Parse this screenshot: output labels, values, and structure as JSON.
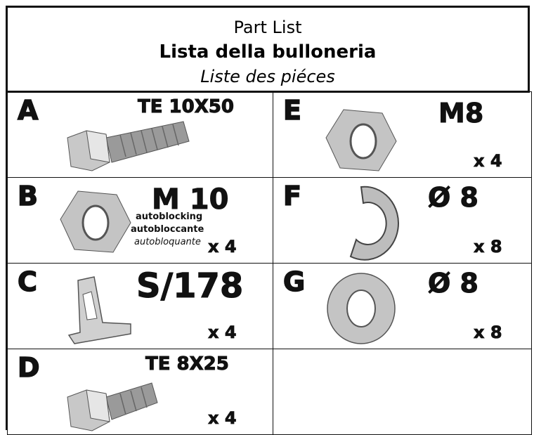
{
  "header": {
    "title": "Part List",
    "title_it": "Lista della bulloneria",
    "title_fr": "Liste des piéces"
  },
  "cells": [
    {
      "letter": "A",
      "spec": "TE 10X50"
    },
    {
      "letter": "E",
      "spec": "M8",
      "qty": "x 4"
    },
    {
      "letter": "B",
      "spec": "M 10",
      "notes": [
        "autoblocking",
        "autobloccante",
        "autobloquante"
      ],
      "qty": "x 4"
    },
    {
      "letter": "F",
      "spec": "Ø 8",
      "qty": "x 8"
    },
    {
      "letter": "C",
      "spec": "S/178",
      "qty": "x 4"
    },
    {
      "letter": "G",
      "spec": "Ø 8",
      "qty": "x 8"
    },
    {
      "letter": "D",
      "spec": "TE 8X25",
      "qty": "x 4"
    }
  ]
}
